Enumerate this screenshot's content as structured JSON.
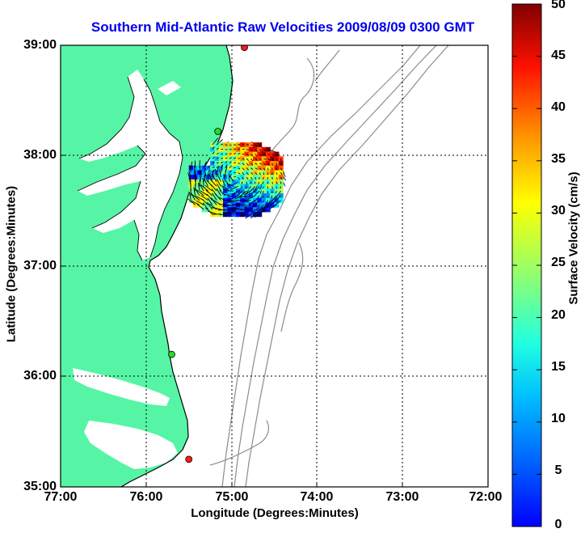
{
  "map": {
    "title": "Southern Mid-Atlantic Raw Velocities 2009/08/09 0300 GMT",
    "xlabel": "Longitude (Degrees:Minutes)",
    "ylabel": "Latitude (Degrees:Minutes)",
    "x_ticks": [
      "77:00",
      "76:00",
      "75:00",
      "74:00",
      "73:00",
      "72:00"
    ],
    "y_ticks": [
      "39:00",
      "38:00",
      "37:00",
      "36:00",
      "35:00"
    ],
    "lon_range": [
      -77,
      -72
    ],
    "lat_range": [
      35,
      39
    ],
    "grid": true
  },
  "colorbar": {
    "label": "Surface Velocity (cm/s)",
    "ticks": [
      "50",
      "45",
      "40",
      "35",
      "30",
      "25",
      "20",
      "15",
      "10",
      "5",
      "0"
    ],
    "range": [
      0,
      50
    ],
    "colormap": "jet"
  },
  "colors": {
    "land": "#55f5a5",
    "water": "#ffffff",
    "bathymetry": "#8c8c8c",
    "title": "#0000ee",
    "station_red": "#ff1a1a",
    "station_green": "#22dd22"
  },
  "stations": [
    {
      "name": "north-red",
      "lon": -74.85,
      "lat": 38.98,
      "color": "red"
    },
    {
      "name": "middle-green",
      "lon": -75.16,
      "lat": 38.22,
      "color": "green"
    },
    {
      "name": "south-green",
      "lon": -75.7,
      "lat": 36.2,
      "color": "green"
    },
    {
      "name": "south-red",
      "lon": -75.5,
      "lat": 35.25,
      "color": "red"
    }
  ],
  "velocity_field": {
    "lon_range": [
      -75.5,
      -74.4
    ],
    "lat_range": [
      37.45,
      38.12
    ],
    "speed_range_cm_s": [
      5,
      50
    ]
  }
}
